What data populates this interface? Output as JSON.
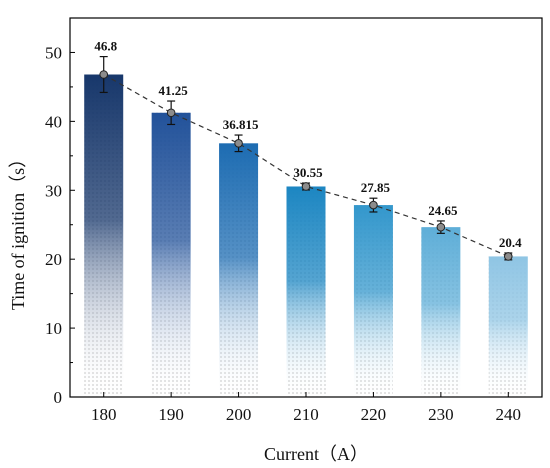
{
  "chart_data": {
    "type": "bar",
    "xlabel": "Current（A）",
    "ylabel": "Time of ignition（s）",
    "categories": [
      "180",
      "190",
      "200",
      "210",
      "220",
      "230",
      "240"
    ],
    "values": [
      46.8,
      41.25,
      36.815,
      30.55,
      27.85,
      24.65,
      20.4
    ],
    "value_labels": [
      "46.8",
      "41.25",
      "36.815",
      "30.55",
      "27.85",
      "24.65",
      "20.4"
    ],
    "errors": [
      2.6,
      1.7,
      1.2,
      0.5,
      1.0,
      0.9,
      0.5
    ],
    "ylim": [
      0,
      55
    ],
    "yticks": [
      "0",
      "10",
      "20",
      "30",
      "40",
      "50"
    ],
    "grid": false,
    "trend_line": "dashed",
    "bar_colors": [
      "#17376b",
      "#22529a",
      "#1d6cb2",
      "#1c86c2",
      "#3397cc",
      "#5eaed8",
      "#8fc5e4"
    ]
  }
}
